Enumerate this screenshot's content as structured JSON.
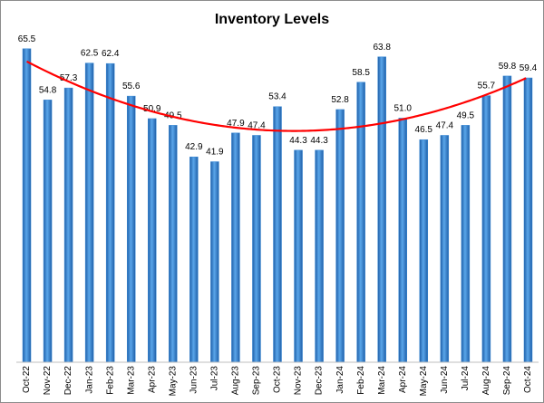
{
  "chart_data": {
    "type": "bar",
    "title": "Inventory Levels",
    "categories": [
      "Oct-22",
      "Nov-22",
      "Dec-22",
      "Jan-23",
      "Feb-23",
      "Mar-23",
      "Apr-23",
      "May-23",
      "Jun-23",
      "Jul-23",
      "Aug-23",
      "Sep-23",
      "Oct-23",
      "Nov-23",
      "Dec-23",
      "Jan-24",
      "Feb-24",
      "Mar-24",
      "Apr-24",
      "May-24",
      "Jun-24",
      "Jul-24",
      "Aug-24",
      "Sep-24",
      "Oct-24"
    ],
    "values": [
      65.5,
      54.8,
      57.3,
      62.5,
      62.4,
      55.6,
      50.9,
      49.5,
      42.9,
      41.9,
      47.9,
      47.4,
      53.4,
      44.3,
      44.3,
      52.8,
      58.5,
      63.8,
      51.0,
      46.5,
      47.4,
      49.5,
      55.7,
      59.8,
      59.4
    ],
    "value_labels": [
      "65.5",
      "54.8",
      "57.3",
      "62.5",
      "62.4",
      "55.6",
      "50.9",
      "49.5",
      "42.9",
      "41.9",
      "47.9",
      "47.4",
      "53.4",
      "44.3",
      "44.3",
      "52.8",
      "58.5",
      "63.8",
      "51.0",
      "46.5",
      "47.4",
      "49.5",
      "55.7",
      "59.8",
      "59.4"
    ],
    "color": "#3a8ad6",
    "trendline_color": "#ff0000",
    "ylim": [
      0,
      70
    ]
  }
}
